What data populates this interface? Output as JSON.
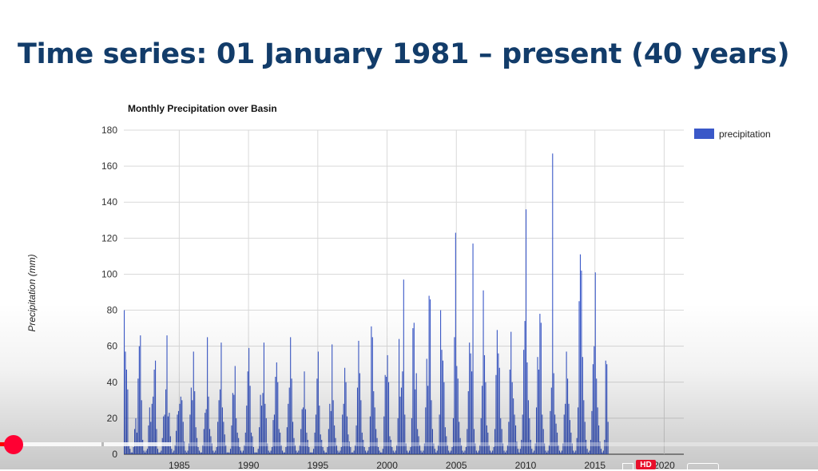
{
  "slide": {
    "title": "Time series: 01 January 1981 – present (40 years)"
  },
  "chart_data": {
    "type": "bar",
    "title": "Monthly Precipitation over Basin",
    "xlabel": "",
    "ylabel": "Precipitation (mm)",
    "ylim": [
      0,
      180
    ],
    "yticks": [
      "0",
      "20",
      "40",
      "60",
      "80",
      "100",
      "120",
      "140",
      "160",
      "180"
    ],
    "xticks": [
      "1985",
      "1990",
      "1995",
      "2000",
      "2005",
      "2010",
      "2015",
      "2020"
    ],
    "x_range": [
      "1981-01",
      "2021-06"
    ],
    "grid": true,
    "legend_position": "right",
    "series": [
      {
        "name": "precipitation",
        "color": "#3a58c8",
        "start": "1981-01",
        "values": [
          80,
          57,
          47,
          36,
          5,
          3,
          1,
          1,
          4,
          14,
          20,
          12,
          42,
          60,
          66,
          30,
          8,
          2,
          1,
          2,
          3,
          16,
          26,
          18,
          28,
          32,
          47,
          52,
          14,
          3,
          1,
          1,
          2,
          9,
          21,
          22,
          36,
          66,
          21,
          23,
          10,
          3,
          1,
          2,
          5,
          13,
          22,
          24,
          28,
          32,
          30,
          18,
          7,
          2,
          1,
          2,
          6,
          22,
          37,
          30,
          57,
          35,
          15,
          9,
          4,
          2,
          1,
          1,
          5,
          14,
          23,
          25,
          65,
          32,
          14,
          10,
          6,
          2,
          1,
          2,
          4,
          18,
          30,
          36,
          62,
          26,
          18,
          11,
          5,
          1,
          1,
          1,
          3,
          16,
          34,
          33,
          49,
          20,
          12,
          9,
          4,
          2,
          1,
          2,
          5,
          12,
          27,
          46,
          59,
          38,
          12,
          10,
          4,
          1,
          1,
          1,
          3,
          15,
          33,
          27,
          34,
          62,
          28,
          20,
          6,
          2,
          1,
          2,
          4,
          19,
          22,
          43,
          51,
          40,
          14,
          12,
          5,
          2,
          1,
          1,
          4,
          15,
          28,
          37,
          65,
          42,
          18,
          9,
          5,
          2,
          1,
          2,
          5,
          14,
          25,
          26,
          46,
          25,
          12,
          8,
          4,
          1,
          1,
          1,
          3,
          12,
          22,
          42,
          57,
          27,
          11,
          8,
          4,
          2,
          1,
          1,
          4,
          14,
          28,
          24,
          61,
          30,
          16,
          9,
          5,
          2,
          1,
          2,
          4,
          22,
          28,
          48,
          40,
          21,
          11,
          7,
          4,
          1,
          1,
          2,
          5,
          16,
          37,
          63,
          45,
          30,
          12,
          8,
          4,
          2,
          1,
          2,
          4,
          21,
          71,
          65,
          35,
          26,
          14,
          9,
          4,
          2,
          1,
          1,
          3,
          21,
          44,
          43,
          55,
          40,
          10,
          8,
          4,
          2,
          1,
          2,
          5,
          20,
          64,
          32,
          37,
          46,
          97,
          22,
          6,
          2,
          1,
          2,
          4,
          20,
          70,
          73,
          36,
          45,
          14,
          10,
          5,
          2,
          1,
          2,
          6,
          26,
          53,
          38,
          88,
          86,
          30,
          14,
          6,
          3,
          1,
          2,
          5,
          22,
          80,
          58,
          52,
          40,
          15,
          10,
          5,
          2,
          1,
          2,
          4,
          20,
          65,
          123,
          49,
          42,
          18,
          9,
          5,
          2,
          1,
          2,
          4,
          14,
          35,
          62,
          56,
          46,
          117,
          14,
          6,
          2,
          1,
          2,
          5,
          20,
          38,
          91,
          55,
          40,
          16,
          12,
          5,
          2,
          1,
          2,
          4,
          14,
          44,
          69,
          56,
          48,
          20,
          14,
          6,
          2,
          1,
          2,
          5,
          18,
          47,
          68,
          40,
          31,
          22,
          16,
          7,
          3,
          1,
          3,
          8,
          22,
          58,
          74,
          136,
          51,
          30,
          20,
          8,
          3,
          1,
          2,
          6,
          26,
          54,
          47,
          78,
          73,
          22,
          14,
          6,
          2,
          1,
          2,
          5,
          24,
          37,
          167,
          45,
          22,
          17,
          12,
          5,
          2,
          1,
          2,
          6,
          22,
          28,
          57,
          42,
          28,
          19,
          12,
          6,
          2,
          1,
          2,
          9,
          26,
          85,
          111,
          102,
          54,
          30,
          18,
          8,
          3,
          1,
          2,
          8,
          24,
          50,
          60,
          101,
          42,
          26,
          16,
          7,
          3,
          1,
          2,
          8,
          52,
          50,
          18
        ]
      }
    ]
  },
  "player": {
    "progress_fraction": 0.016,
    "buffered_fraction": 0.21,
    "hd_label": "HD"
  },
  "colors": {
    "title": "#123c6a",
    "bar": "#3a58c8",
    "grid": "#d9d9d9",
    "progress": "#ff0000"
  }
}
